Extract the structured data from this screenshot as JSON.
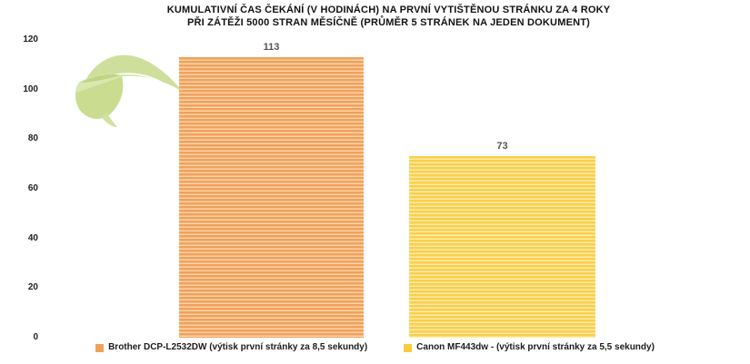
{
  "title": {
    "line1": "KUMULATIVNÍ ČAS ČEKÁNÍ (V HODINÁCH) NA PRVNÍ VYTIŠTĚNOU STRÁNKU ZA 4 ROKY",
    "line2": "PŘI ZÁTĚŽI 5000 STRAN MĚSÍČNĚ (PRŮMĚR 5 STRÁNEK NA JEDEN DOKUMENT)"
  },
  "yaxis": {
    "ticks": [
      "120",
      "100",
      "80",
      "60",
      "40",
      "20",
      "0"
    ]
  },
  "chart_data": {
    "type": "bar",
    "title": "KUMULATIVNÍ ČAS ČEKÁNÍ (V HODINÁCH) NA PRVNÍ VYTIŠTĚNOU STRÁNKU ZA 4 ROKY PŘI ZÁTĚŽI 5000 STRAN MĚSÍČNĚ (PRŮMĚR 5 STRÁNEK NA JEDEN DOKUMENT)",
    "categories": [
      "Brother DCP-L2532DW (výtisk první stránky za 8,5 sekundy)",
      "Canon MF443dw - (výtisk první stránky za 5,5 sekundy)"
    ],
    "values": [
      113,
      73
    ],
    "value_labels": [
      "113",
      "73"
    ],
    "xlabel": "",
    "ylabel": "",
    "ylim": [
      0,
      120
    ],
    "yticks": [
      0,
      20,
      40,
      60,
      80,
      100,
      120
    ],
    "grid": false,
    "legend_position": "bottom",
    "bar_stripe_colors": [
      {
        "dark": "#F2A05C",
        "light": "#FBD4A6"
      },
      {
        "dark": "#FCCE4A",
        "light": "#FDEDAC"
      }
    ]
  },
  "legend": {
    "items": [
      {
        "label": "Brother DCP-L2532DW (výtisk první stránky za 8,5 sekundy)",
        "color": "#F2A159"
      },
      {
        "label": "Canon MF443dw - (výtisk první stránky za 5,5 sekundy)",
        "color": "#FCCB3C"
      }
    ]
  },
  "decoration": {
    "leaf_icon": "leaf-decoration",
    "colors": {
      "leaf_light": "#D8E6AB",
      "leaf_mid": "#CBDD96",
      "leaf_dark": "#C5D98B",
      "leaf_overlap": "#B9D07B"
    }
  },
  "text_colors": {
    "title": "#121212",
    "value_label": "#555555",
    "axis_tick": "#1F1F1F",
    "legend_label": "#1C1C1C"
  }
}
